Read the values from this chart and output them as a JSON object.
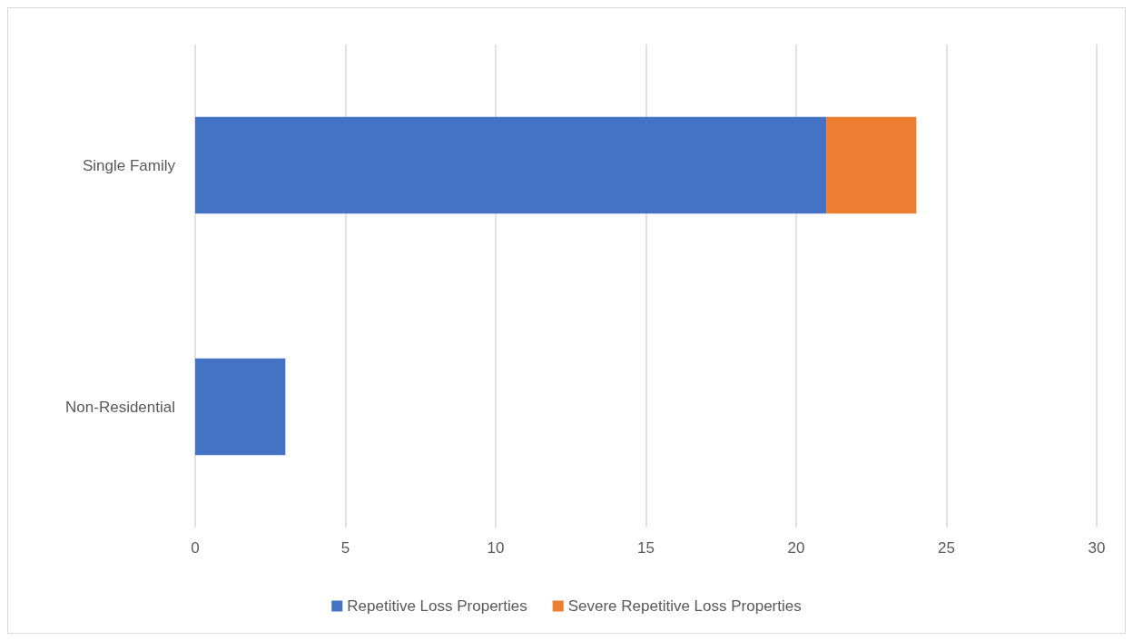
{
  "chart_data": {
    "type": "bar",
    "orientation": "horizontal",
    "stacked": true,
    "categories": [
      "Single Family",
      "Non-Residential"
    ],
    "series": [
      {
        "name": "Repetitive Loss Properties",
        "color": "#4472c4",
        "values": [
          21,
          3
        ]
      },
      {
        "name": "Severe Repetitive Loss Properties",
        "color": "#ed7d31",
        "values": [
          3,
          0
        ]
      }
    ],
    "xlim": [
      0,
      30
    ],
    "xticks": [
      0,
      5,
      10,
      15,
      20,
      25,
      30
    ],
    "grid": "x",
    "legend": "bottom"
  }
}
